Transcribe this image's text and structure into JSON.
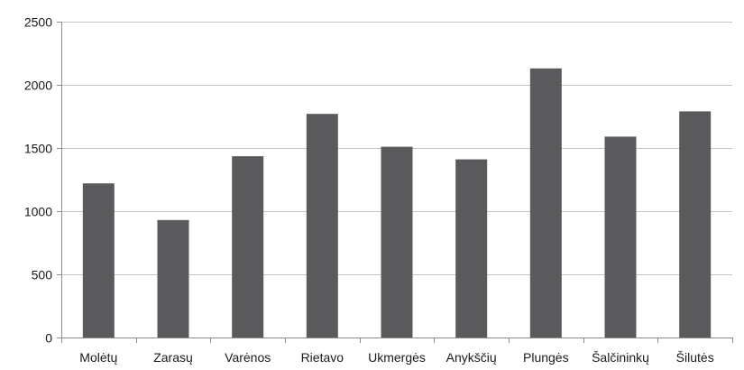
{
  "chart_data": {
    "type": "bar",
    "title": "",
    "xlabel": "",
    "ylabel": "",
    "categories": [
      "Molėtų",
      "Zarasų",
      "Varėnos",
      "Rietavo",
      "Ukmergės",
      "Anykščių",
      "Plungės",
      "Šalčininkų",
      "Šilutės"
    ],
    "values": [
      1220,
      930,
      1435,
      1770,
      1510,
      1410,
      2130,
      1590,
      1790
    ],
    "ylim": [
      0,
      2500
    ],
    "yticks": [
      0,
      500,
      1000,
      1500,
      2000,
      2500
    ],
    "grid": true,
    "legend": "none",
    "bar_color": "#5a5a5c",
    "grid_color": "#c4c4c4"
  }
}
